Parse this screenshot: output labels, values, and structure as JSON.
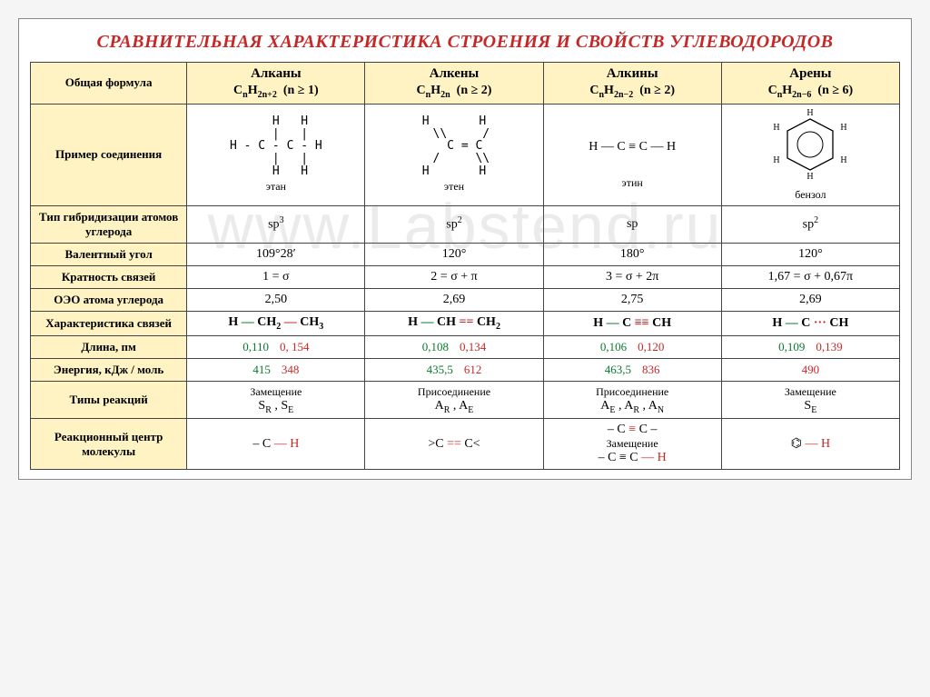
{
  "title": "СРАВНИТЕЛЬНАЯ ХАРАКТЕРИСТИКА СТРОЕНИЯ И СВОЙСТВ УГЛЕВОДОРОДОВ",
  "watermark": "www.Labstend.ru",
  "rowheads": {
    "formula": "Общая формула",
    "example": "Пример соединения",
    "hybrid": "Тип гибридизации атомов углерода",
    "angle": "Валентный угол",
    "bondmult": "Кратность связей",
    "oeo": "ОЭО атома углерода",
    "bondchar": "Характеристика связей",
    "length": "Длина, пм",
    "energy": "Энергия, кДж / моль",
    "rxtype": "Типы реакций",
    "rxcenter": "Реакционный центр молекулы"
  },
  "cols": [
    {
      "name": "Алканы",
      "formula_html": "C<sub>n</sub>H<sub>2n+2</sub>&nbsp;&nbsp;(n ≥ 1)",
      "example_name": "этан",
      "hybrid_html": "sp<sup>3</sup>",
      "angle_html": "109°28′",
      "bondmult_html": "1 = σ",
      "oeo": "2,50",
      "bond_html": "H <span class='green'>—</span> CH<sub>2</sub> <span class='red'>—</span> CH<sub>3</sub>",
      "len_a": "0,110",
      "len_b": "0, 154",
      "e_a": "415",
      "e_b": "348",
      "rx1": "Замещение",
      "rx2_html": "S<sub>R</sub> , S<sub>E</sub>",
      "center_html": "– C <span class='red'>— H</span>"
    },
    {
      "name": "Алкены",
      "formula_html": "C<sub>n</sub>H<sub>2n</sub>&nbsp;&nbsp;(n ≥ 2)",
      "example_name": "этен",
      "hybrid_html": "sp<sup>2</sup>",
      "angle_html": "120°",
      "bondmult_html": "2 = σ + π",
      "oeo": "2,69",
      "bond_html": "H <span class='green'>—</span> CH <span class='red'>==</span> CH<sub>2</sub>",
      "len_a": "0,108",
      "len_b": "0,134",
      "e_a": "435,5",
      "e_b": "612",
      "rx1": "Присоединение",
      "rx2_html": "A<sub>R</sub> , A<sub>E</sub>",
      "center_html": "&gt;C <span class='red'>==</span> C&lt;"
    },
    {
      "name": "Алкины",
      "formula_html": "C<sub>n</sub>H<sub>2n−2</sub>&nbsp;&nbsp;(n ≥ 2)",
      "example_name": "этин",
      "hybrid_html": "sp",
      "angle_html": "180°",
      "bondmult_html": "3 = σ + 2π",
      "oeo": "2,75",
      "bond_html": "H <span class='green'>—</span> C <span class='red'>≡≡</span> CH",
      "len_a": "0,106",
      "len_b": "0,120",
      "e_a": "463,5",
      "e_b": "836",
      "rx1": "Присоединение",
      "rx2_html": "A<sub>E</sub> , A<sub>R</sub> , A<sub>N</sub>",
      "center_lines": [
        "– C <span class='red'>≡</span> C –",
        "Замещение",
        "– C ≡ C <span class='red'>— H</span>"
      ]
    },
    {
      "name": "Арены",
      "formula_html": "C<sub>n</sub>H<sub>2n−6</sub>&nbsp;&nbsp;(n ≥ 6)",
      "example_name": "бензол",
      "hybrid_html": "sp<sup>2</sup>",
      "angle_html": "120°",
      "bondmult_html": "1,67 = σ + 0,67π",
      "oeo": "2,69",
      "bond_html": "H <span class='green'>—</span> C <span class='red'>···</span> CH",
      "len_a": "0,109",
      "len_b": "0,139",
      "e_a": "",
      "e_b": "490",
      "rx1": "Замещение",
      "rx2_html": "S<sub>E</sub>",
      "center_html": "⌬ <span class='red'>— H</span>"
    }
  ],
  "colors": {
    "heading": "#c62828",
    "header_bg": "#fff3c4",
    "green": "#0a7a2f",
    "red": "#c62828"
  }
}
